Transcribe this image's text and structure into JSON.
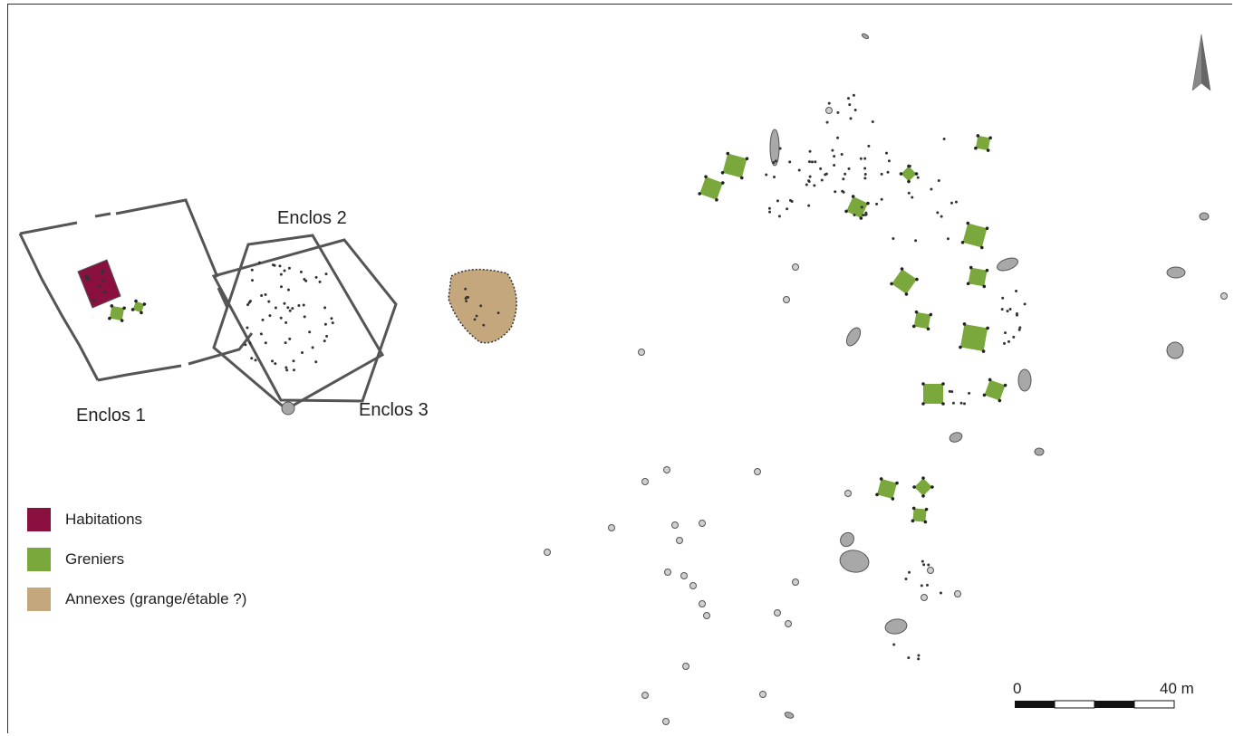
{
  "colors": {
    "habitations": "#8a1040",
    "greniers": "#7aa83c",
    "annexes": "#c4a77d",
    "structure_fill": "#a8a8a8",
    "outline": "#555555"
  },
  "enclos_labels": [
    "Enclos 1",
    "Enclos 2",
    "Enclos 3"
  ],
  "legend": [
    {
      "label": "Habitations",
      "color_key": "habitations"
    },
    {
      "label": "Greniers",
      "color_key": "greniers"
    },
    {
      "label": "Annexes (grange/étable ?)",
      "color_key": "annexes"
    }
  ],
  "scale_bar": {
    "start_label": "0",
    "end_label": "40 m"
  },
  "north_arrow": {
    "icon": "north-arrow-icon"
  }
}
